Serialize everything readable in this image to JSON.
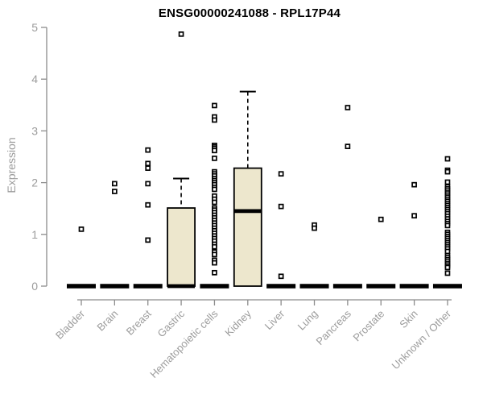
{
  "chart_data": {
    "type": "boxplot",
    "title": "ENSG00000241088 - RPL17P44",
    "ylabel": "Expression",
    "ylim": [
      0,
      5
    ],
    "yticks": [
      0,
      1,
      2,
      3,
      4,
      5
    ],
    "grid": "off",
    "categories": [
      "Bladder",
      "Brain",
      "Breast",
      "Gastric",
      "Hematopoietic cells",
      "Kidney",
      "Liver",
      "Lung",
      "Pancreas",
      "Prostate",
      "Skin",
      "Unknown / Other"
    ],
    "colors": {
      "box_fill": "#EDE7CD",
      "box_border": "#000000",
      "axis_line": "#8c8c8c",
      "axis_text": "#9c9c9c",
      "title_text": "#000000",
      "point": "#000000"
    },
    "series": [
      {
        "category": "Bladder",
        "q1": 0,
        "median": 0,
        "q3": 0,
        "whisker_low": 0,
        "whisker_high": 0,
        "outliers": [
          1.1
        ]
      },
      {
        "category": "Brain",
        "q1": 0,
        "median": 0,
        "q3": 0,
        "whisker_low": 0,
        "whisker_high": 0,
        "outliers": [
          1.98,
          1.83
        ]
      },
      {
        "category": "Breast",
        "q1": 0,
        "median": 0,
        "q3": 0,
        "whisker_low": 0,
        "whisker_high": 0,
        "outliers": [
          2.63,
          2.37,
          2.28,
          1.98,
          1.57,
          0.89
        ]
      },
      {
        "category": "Gastric",
        "q1": 0,
        "median": 0,
        "q3": 1.51,
        "whisker_low": 0,
        "whisker_high": 2.08,
        "outliers": [
          4.87
        ]
      },
      {
        "category": "Hematopoietic cells",
        "q1": 0,
        "median": 0,
        "q3": 0,
        "whisker_low": 0,
        "whisker_high": 0,
        "outliers": [
          3.49,
          3.27,
          3.21,
          2.72,
          2.69,
          2.66,
          2.62,
          2.47,
          2.21,
          2.17,
          2.13,
          2.08,
          2.04,
          2.0,
          1.96,
          1.91,
          1.87,
          1.74,
          1.68,
          1.62,
          1.51,
          1.47,
          1.42,
          1.37,
          1.32,
          1.27,
          1.22,
          1.17,
          1.12,
          1.07,
          1.02,
          0.97,
          0.92,
          0.87,
          0.81,
          0.76,
          0.66,
          0.61,
          0.5,
          0.45,
          0.26
        ]
      },
      {
        "category": "Kidney",
        "q1": 0,
        "median": 1.45,
        "q3": 2.28,
        "whisker_low": 0,
        "whisker_high": 3.76,
        "outliers": []
      },
      {
        "category": "Liver",
        "q1": 0,
        "median": 0,
        "q3": 0,
        "whisker_low": 0,
        "whisker_high": 0,
        "outliers": [
          2.17,
          1.54,
          0.19
        ]
      },
      {
        "category": "Lung",
        "q1": 0,
        "median": 0,
        "q3": 0,
        "whisker_low": 0,
        "whisker_high": 0,
        "outliers": [
          1.18,
          1.12
        ]
      },
      {
        "category": "Pancreas",
        "q1": 0,
        "median": 0,
        "q3": 0,
        "whisker_low": 0,
        "whisker_high": 0,
        "outliers": [
          3.45,
          2.7
        ]
      },
      {
        "category": "Prostate",
        "q1": 0,
        "median": 0,
        "q3": 0,
        "whisker_low": 0,
        "whisker_high": 0,
        "outliers": [
          1.29
        ]
      },
      {
        "category": "Skin",
        "q1": 0,
        "median": 0,
        "q3": 0,
        "whisker_low": 0,
        "whisker_high": 0,
        "outliers": [
          1.96,
          1.36
        ]
      },
      {
        "category": "Unknown / Other",
        "q1": 0,
        "median": 0,
        "q3": 0,
        "whisker_low": 0,
        "whisker_high": 0,
        "outliers": [
          2.46,
          2.24,
          2.21,
          2.01,
          1.92,
          1.88,
          1.84,
          1.8,
          1.76,
          1.72,
          1.68,
          1.64,
          1.6,
          1.56,
          1.52,
          1.48,
          1.44,
          1.4,
          1.35,
          1.3,
          1.25,
          1.21,
          1.17,
          1.04,
          1.0,
          0.96,
          0.92,
          0.88,
          0.84,
          0.8,
          0.76,
          0.72,
          0.67,
          0.59,
          0.55,
          0.51,
          0.47,
          0.43,
          0.39,
          0.36,
          0.25
        ]
      }
    ]
  }
}
